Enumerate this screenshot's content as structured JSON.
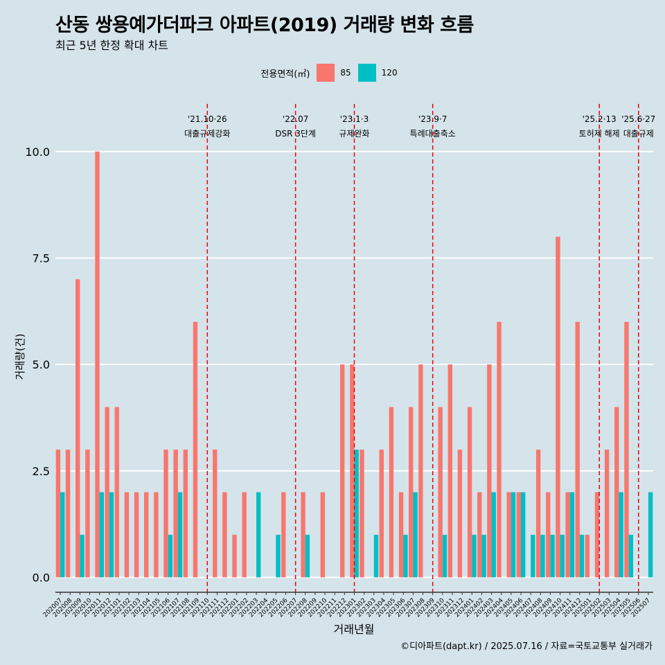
{
  "header": {
    "title": "산동 쌍용예가더파크 아파트(2019) 거래량 변화 흐름",
    "subtitle": "최근 5년 한정 확대 차트"
  },
  "legend": {
    "title": "전용면적(㎡)",
    "items": [
      {
        "label": "85",
        "color": "#f8766d"
      },
      {
        "label": "120",
        "color": "#00bfc4"
      }
    ]
  },
  "caption": "©디아파트(dapt.kr) / 2025.07.16 / 자료=국토교통부 실거래가",
  "chart_data": {
    "type": "bar",
    "xlabel": "거래년월",
    "ylabel": "거래량(건)",
    "ylim": [
      -0.35,
      11.2
    ],
    "yticks": [
      0,
      2.5,
      5,
      7.5,
      10
    ],
    "ytick_labels": [
      "0.0",
      "2.5",
      "5.0",
      "7.5",
      "10.0"
    ],
    "categories": [
      "202007",
      "202008",
      "202009",
      "202010",
      "202011",
      "202012",
      "202101",
      "202102",
      "202103",
      "202104",
      "202105",
      "202106",
      "202107",
      "202108",
      "202109",
      "202110",
      "202111",
      "202112",
      "202201",
      "202202",
      "202203",
      "202204",
      "202205",
      "202206",
      "202207",
      "202208",
      "202209",
      "202210",
      "202211",
      "202212",
      "202301",
      "202302",
      "202303",
      "202304",
      "202305",
      "202306",
      "202307",
      "202308",
      "202309",
      "202310",
      "202311",
      "202312",
      "202401",
      "202402",
      "202403",
      "202404",
      "202405",
      "202406",
      "202407",
      "202408",
      "202409",
      "202410",
      "202411",
      "202412",
      "202501",
      "202502",
      "202503",
      "202504",
      "202505",
      "202506",
      "202507"
    ],
    "series": [
      {
        "name": "85",
        "color": "#f8766d",
        "values": [
          3,
          3,
          7,
          3,
          10,
          4,
          4,
          2,
          2,
          2,
          2,
          3,
          3,
          3,
          6,
          0,
          3,
          2,
          1,
          2,
          0,
          0,
          0,
          2,
          0,
          2,
          0,
          2,
          0,
          5,
          5,
          3,
          0,
          3,
          4,
          2,
          4,
          5,
          0,
          4,
          5,
          3,
          4,
          2,
          5,
          6,
          2,
          2,
          0,
          3,
          2,
          8,
          2,
          6,
          1,
          2,
          3,
          4,
          6,
          0,
          0
        ]
      },
      {
        "name": "120",
        "color": "#00bfc4",
        "values": [
          2,
          0,
          1,
          0,
          2,
          2,
          0,
          0,
          0,
          0,
          0,
          1,
          2,
          0,
          0,
          0,
          0,
          0,
          0,
          0,
          2,
          0,
          1,
          0,
          0,
          1,
          0,
          0,
          0,
          0,
          3,
          0,
          1,
          0,
          0,
          1,
          2,
          0,
          0,
          1,
          0,
          0,
          1,
          1,
          2,
          0,
          2,
          2,
          1,
          1,
          1,
          1,
          2,
          1,
          0,
          0,
          0,
          2,
          1,
          0,
          2
        ]
      }
    ],
    "events": [
      {
        "date": "'21.10·26",
        "label": "대출규제강화",
        "index": 15
      },
      {
        "date": "'22.07",
        "label": "DSR 3단계",
        "index": 24
      },
      {
        "date": "'23.1·3",
        "label": "규제완화",
        "index": 30
      },
      {
        "date": "'23.9·7",
        "label": "특례대출축소",
        "index": 38
      },
      {
        "date": "'25.2·13",
        "label": "토허제 해제",
        "index": 55
      },
      {
        "date": "'25.6·27",
        "label": "대출규제",
        "index": 59
      }
    ]
  }
}
